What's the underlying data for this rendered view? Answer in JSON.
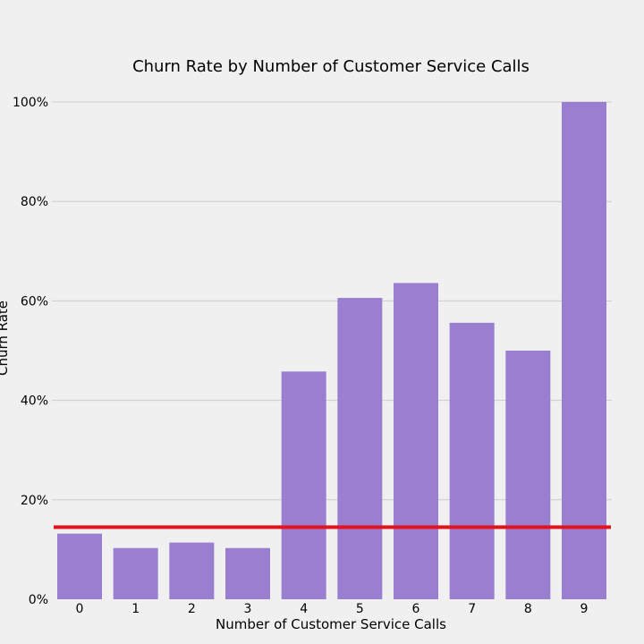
{
  "chart_data": {
    "type": "bar",
    "title": "Churn Rate by Number of Customer Service Calls",
    "xlabel": "Number of Customer Service Calls",
    "ylabel": "Churn Rate",
    "categories": [
      "0",
      "1",
      "2",
      "3",
      "4",
      "5",
      "6",
      "7",
      "8",
      "9"
    ],
    "values": [
      0.132,
      0.103,
      0.114,
      0.103,
      0.458,
      0.606,
      0.636,
      0.556,
      0.5,
      1.0
    ],
    "ylim": [
      0,
      1
    ],
    "yticks": [
      0,
      0.2,
      0.4,
      0.6,
      0.8,
      1.0
    ],
    "ytick_labels": [
      "0%",
      "20%",
      "40%",
      "60%",
      "80%",
      "100%"
    ],
    "grid": "horizontal",
    "reference_line": {
      "value": 0.145,
      "color": "#e5121b"
    },
    "bar_color": "#9a7fd1",
    "background_color": "#f0f0f0"
  }
}
